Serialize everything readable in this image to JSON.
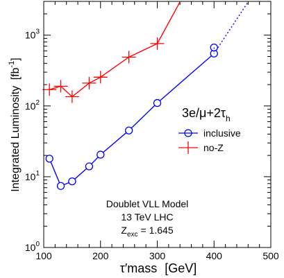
{
  "chart_data": {
    "type": "line",
    "xlabel_main": "τ′mass",
    "xlabel_unit": "[GeV]",
    "ylabel_main": "Integrated Luminosity",
    "ylabel_unit": "[fb",
    "ylabel_exp": "-1",
    "ylabel_close": "]",
    "xlim": [
      100,
      500
    ],
    "ylim": [
      1,
      3000
    ],
    "yscale": "log",
    "x_ticks": [
      100,
      200,
      300,
      400,
      500
    ],
    "y_ticks": [
      {
        "base": "10",
        "exp": "0",
        "value": 1
      },
      {
        "base": "10",
        "exp": "1",
        "value": 10
      },
      {
        "base": "10",
        "exp": "2",
        "value": 100
      },
      {
        "base": "10",
        "exp": "3",
        "value": 1000
      }
    ],
    "channel_label": "3e/μ+2τ",
    "channel_sub": "h",
    "legend_position": "right",
    "series": [
      {
        "name": "inclusive",
        "color": "#0000ff",
        "marker": "circle",
        "x": [
          110,
          130,
          150,
          180,
          200,
          250,
          300,
          400
        ],
        "y": [
          18,
          7.4,
          8.6,
          14,
          20.5,
          45,
          110,
          550
        ],
        "extrapolation": {
          "x": [
            400,
            460
          ],
          "y": [
            550,
            2950
          ]
        }
      },
      {
        "name": "no-Z",
        "color": "#ff0000",
        "marker": "cross",
        "x": [
          110,
          130,
          150,
          180,
          200,
          250,
          300
        ],
        "y": [
          170,
          190,
          135,
          210,
          255,
          490,
          760
        ],
        "extrapolation": {
          "x": [
            300,
            340
          ],
          "y": [
            760,
            2950
          ]
        }
      }
    ],
    "extra_points": [
      {
        "series": "inclusive",
        "x": 400,
        "y": 670,
        "marker": "circle"
      }
    ],
    "annotations": {
      "model": "Doublet VLL Model",
      "energy": "13 TeV LHC",
      "zexc_base": "Z",
      "zexc_sub": "exc",
      "zexc_value": "= 1.645"
    }
  }
}
